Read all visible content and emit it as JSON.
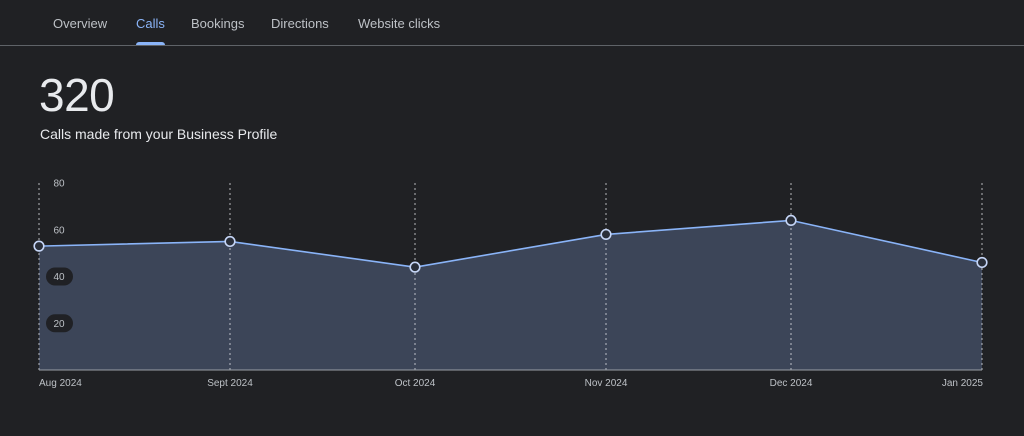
{
  "tabs": [
    {
      "label": "Overview",
      "active": false
    },
    {
      "label": "Calls",
      "active": true
    },
    {
      "label": "Bookings",
      "active": false
    },
    {
      "label": "Directions",
      "active": false
    },
    {
      "label": "Website clicks",
      "active": false
    }
  ],
  "metric": {
    "value": "320",
    "description": "Calls made from your Business Profile"
  },
  "colors": {
    "background": "#202124",
    "accent": "#8ab4f8",
    "line": "#8ab4f8",
    "area": "#3c4558"
  },
  "chart_data": {
    "type": "area",
    "title": "",
    "xlabel": "",
    "ylabel": "",
    "categories": [
      "Aug 2024",
      "Sept 2024",
      "Oct 2024",
      "Nov 2024",
      "Dec 2024",
      "Jan 2025"
    ],
    "series": [
      {
        "values": [
          53,
          55,
          44,
          58,
          64,
          46
        ]
      }
    ],
    "yticks": [
      "20",
      "40",
      "60",
      "80"
    ],
    "ylim": [
      0,
      80
    ],
    "grid": "vertical dashed",
    "legend": "none"
  }
}
